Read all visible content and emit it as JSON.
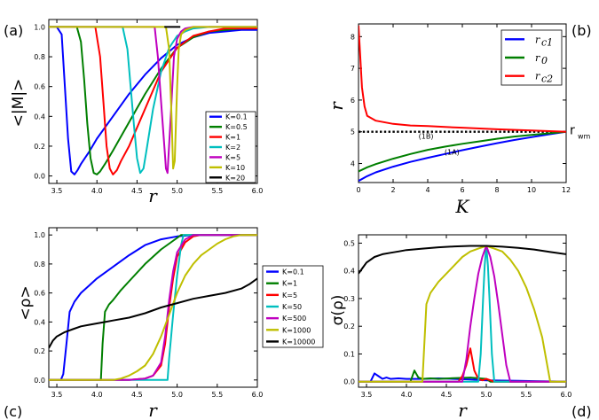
{
  "colors": {
    "blue": "#0000ff",
    "green": "#007f00",
    "red": "#ff0000",
    "cyan": "#00bfbf",
    "magenta": "#bf00bf",
    "olive": "#bfbf00",
    "black": "#000000"
  },
  "chart_data": [
    {
      "panel_label": "(a)",
      "type": "line",
      "xlabel": "r",
      "ylabel": "<|M|>",
      "xlim": [
        3.4,
        6.0
      ],
      "ylim": [
        -0.05,
        1.05
      ],
      "xticks": [
        "3.5",
        "4.0",
        "4.5",
        "5.0",
        "5.5",
        "6.0"
      ],
      "yticks": [
        "0.0",
        "0.2",
        "0.4",
        "0.6",
        "0.8",
        "1.0"
      ],
      "legend_position": "bottom-right",
      "series": [
        {
          "name": "K=0.1",
          "color": "blue",
          "x": [
            3.4,
            3.5,
            3.56,
            3.6,
            3.64,
            3.68,
            3.72,
            3.76,
            3.8,
            3.9,
            4.0,
            4.2,
            4.4,
            4.6,
            4.8,
            5.0,
            5.2,
            5.4,
            5.6,
            5.8,
            6.0
          ],
          "y": [
            1.0,
            1.0,
            0.95,
            0.6,
            0.25,
            0.03,
            0.01,
            0.04,
            0.08,
            0.16,
            0.25,
            0.4,
            0.55,
            0.68,
            0.79,
            0.88,
            0.93,
            0.96,
            0.97,
            0.98,
            0.98
          ]
        },
        {
          "name": "K=0.5",
          "color": "green",
          "x": [
            3.4,
            3.75,
            3.8,
            3.84,
            3.88,
            3.92,
            3.96,
            4.0,
            4.04,
            4.1,
            4.2,
            4.4,
            4.6,
            4.8,
            5.0,
            5.2,
            5.4,
            5.6,
            5.8,
            6.0
          ],
          "y": [
            1.0,
            1.0,
            0.9,
            0.65,
            0.35,
            0.12,
            0.02,
            0.01,
            0.03,
            0.08,
            0.17,
            0.36,
            0.55,
            0.72,
            0.86,
            0.93,
            0.97,
            0.98,
            0.99,
            0.99
          ]
        },
        {
          "name": "K=1",
          "color": "red",
          "x": [
            3.4,
            3.98,
            4.04,
            4.08,
            4.12,
            4.16,
            4.2,
            4.25,
            4.3,
            4.4,
            4.6,
            4.8,
            5.0,
            5.2,
            5.4,
            5.6,
            5.8,
            6.0
          ],
          "y": [
            1.0,
            1.0,
            0.8,
            0.5,
            0.2,
            0.05,
            0.01,
            0.04,
            0.1,
            0.2,
            0.45,
            0.7,
            0.86,
            0.94,
            0.97,
            0.99,
            0.99,
            0.99
          ]
        },
        {
          "name": "K=2",
          "color": "cyan",
          "x": [
            3.4,
            4.32,
            4.38,
            4.42,
            4.46,
            4.5,
            4.54,
            4.58,
            4.62,
            4.7,
            4.8,
            4.9,
            5.0,
            5.1,
            5.2,
            5.4,
            5.6,
            5.8,
            6.0
          ],
          "y": [
            1.0,
            1.0,
            0.85,
            0.6,
            0.35,
            0.12,
            0.02,
            0.05,
            0.18,
            0.45,
            0.7,
            0.86,
            0.94,
            0.97,
            0.99,
            1.0,
            1.0,
            1.0,
            1.0
          ]
        },
        {
          "name": "K=5",
          "color": "magenta",
          "x": [
            3.4,
            4.72,
            4.76,
            4.8,
            4.84,
            4.86,
            4.88,
            4.92,
            4.96,
            5.0,
            5.05,
            5.1,
            5.2,
            5.4,
            5.6,
            5.8,
            6.0
          ],
          "y": [
            1.0,
            1.0,
            0.8,
            0.5,
            0.2,
            0.05,
            0.02,
            0.4,
            0.8,
            0.92,
            0.97,
            0.99,
            1.0,
            1.0,
            1.0,
            1.0,
            1.0
          ]
        },
        {
          "name": "K=10",
          "color": "olive",
          "x": [
            3.4,
            4.86,
            4.9,
            4.93,
            4.95,
            4.97,
            5.0,
            5.02,
            5.05,
            5.1,
            5.2,
            5.4,
            5.6,
            5.8,
            6.0
          ],
          "y": [
            1.0,
            1.0,
            0.85,
            0.4,
            0.05,
            0.1,
            0.6,
            0.85,
            0.95,
            0.98,
            1.0,
            1.0,
            1.0,
            1.0,
            1.0
          ]
        },
        {
          "name": "K=20",
          "color": "black",
          "x": [
            4.84,
            4.92,
            5.0,
            5.04
          ],
          "y": [
            1.0,
            1.0,
            1.0,
            1.0
          ]
        }
      ]
    },
    {
      "panel_label": "(b)",
      "type": "line",
      "xlabel": "K",
      "ylabel": "r",
      "xlim": [
        0,
        12
      ],
      "ylim": [
        3.4,
        8.4
      ],
      "xticks": [
        "0",
        "2",
        "4",
        "6",
        "8",
        "10",
        "12"
      ],
      "yticks": [
        "4",
        "5",
        "6",
        "7",
        "8"
      ],
      "legend_position": "top-right",
      "annotations": [
        "(1B)",
        "(1A)",
        "r",
        "wm"
      ],
      "reference_line": {
        "y": 5.0,
        "style": "dotted",
        "label": "r_wm"
      },
      "series": [
        {
          "name": "r_c1",
          "legend_main": "r",
          "legend_sub": "c1",
          "color": "blue",
          "x": [
            0,
            0.5,
            1,
            2,
            3,
            4,
            5,
            6,
            7,
            8,
            9,
            10,
            11,
            12
          ],
          "y": [
            3.45,
            3.6,
            3.72,
            3.9,
            4.05,
            4.18,
            4.3,
            4.42,
            4.53,
            4.64,
            4.74,
            4.83,
            4.92,
            5.0
          ]
        },
        {
          "name": "r_0",
          "legend_main": "r",
          "legend_sub": "0",
          "color": "green",
          "x": [
            0,
            0.5,
            1,
            2,
            3,
            4,
            5,
            6,
            7,
            8,
            9,
            10,
            11,
            12
          ],
          "y": [
            3.75,
            3.88,
            3.98,
            4.15,
            4.3,
            4.43,
            4.53,
            4.62,
            4.7,
            4.78,
            4.85,
            4.9,
            4.95,
            5.0
          ]
        },
        {
          "name": "r_c2",
          "legend_main": "r",
          "legend_sub": "c2",
          "color": "red",
          "x": [
            0,
            0.1,
            0.2,
            0.35,
            0.5,
            1,
            2,
            3,
            4,
            5,
            6,
            8,
            10,
            12
          ],
          "y": [
            8.35,
            7.4,
            6.4,
            5.8,
            5.5,
            5.35,
            5.25,
            5.2,
            5.18,
            5.15,
            5.13,
            5.08,
            5.04,
            5.0
          ]
        }
      ]
    },
    {
      "panel_label": "(c)",
      "type": "line",
      "xlabel": "r",
      "ylabel": "<ρ>",
      "xlim": [
        3.4,
        6.0
      ],
      "ylim": [
        -0.05,
        1.05
      ],
      "xticks": [
        "3.5",
        "4.0",
        "4.5",
        "5.0",
        "5.5",
        "6.0"
      ],
      "yticks": [
        "0.0",
        "0.2",
        "0.4",
        "0.6",
        "0.8",
        "1.0"
      ],
      "legend_position": "right-center",
      "series": [
        {
          "name": "K=0.1",
          "color": "blue",
          "x": [
            3.4,
            3.55,
            3.58,
            3.62,
            3.66,
            3.72,
            3.8,
            3.9,
            4.0,
            4.2,
            4.4,
            4.6,
            4.8,
            5.0,
            5.2,
            5.4,
            5.6,
            5.8,
            6.0
          ],
          "y": [
            0.0,
            0.0,
            0.04,
            0.25,
            0.47,
            0.54,
            0.6,
            0.65,
            0.7,
            0.78,
            0.86,
            0.93,
            0.97,
            0.99,
            1.0,
            1.0,
            1.0,
            1.0,
            1.0
          ]
        },
        {
          "name": "K=1",
          "color": "green",
          "x": [
            3.4,
            4.05,
            4.07,
            4.1,
            4.15,
            4.2,
            4.3,
            4.4,
            4.6,
            4.8,
            5.0,
            5.05,
            5.2,
            5.4,
            5.6,
            5.8,
            6.0
          ],
          "y": [
            0.0,
            0.0,
            0.25,
            0.47,
            0.52,
            0.55,
            0.62,
            0.68,
            0.8,
            0.9,
            0.98,
            1.0,
            1.0,
            1.0,
            1.0,
            1.0,
            1.0
          ]
        },
        {
          "name": "K=5",
          "color": "red",
          "x": [
            3.4,
            4.4,
            4.6,
            4.7,
            4.8,
            4.85,
            4.9,
            4.95,
            5.0,
            5.1,
            5.2,
            5.3,
            5.4,
            5.6,
            5.8,
            6.0
          ],
          "y": [
            0.0,
            0.0,
            0.01,
            0.03,
            0.1,
            0.25,
            0.5,
            0.7,
            0.85,
            0.95,
            0.99,
            1.0,
            1.0,
            1.0,
            1.0,
            1.0
          ]
        },
        {
          "name": "K=50",
          "color": "cyan",
          "x": [
            3.4,
            4.88,
            4.9,
            4.95,
            5.0,
            5.05,
            5.08,
            5.2,
            5.4,
            5.6,
            5.8,
            6.0
          ],
          "y": [
            0.0,
            0.0,
            0.15,
            0.45,
            0.72,
            0.93,
            1.0,
            1.0,
            1.0,
            1.0,
            1.0,
            1.0
          ]
        },
        {
          "name": "K=500",
          "color": "magenta",
          "x": [
            3.4,
            4.4,
            4.6,
            4.7,
            4.8,
            4.85,
            4.9,
            4.95,
            5.0,
            5.1,
            5.2,
            5.3,
            5.4,
            5.6,
            5.8,
            6.0
          ],
          "y": [
            0.0,
            0.0,
            0.01,
            0.03,
            0.12,
            0.3,
            0.55,
            0.75,
            0.88,
            0.97,
            1.0,
            1.0,
            1.0,
            1.0,
            1.0,
            1.0
          ]
        },
        {
          "name": "K=1000",
          "color": "olive",
          "x": [
            3.4,
            4.2,
            4.3,
            4.4,
            4.5,
            4.6,
            4.7,
            4.8,
            4.9,
            5.0,
            5.1,
            5.2,
            5.3,
            5.4,
            5.5,
            5.6,
            5.7,
            5.8,
            5.9,
            6.0
          ],
          "y": [
            0.0,
            0.0,
            0.01,
            0.03,
            0.06,
            0.1,
            0.18,
            0.3,
            0.45,
            0.6,
            0.72,
            0.8,
            0.86,
            0.9,
            0.94,
            0.97,
            0.99,
            1.0,
            1.0,
            1.0
          ]
        },
        {
          "name": "K=10000",
          "color": "black",
          "x": [
            3.4,
            3.45,
            3.5,
            3.6,
            3.7,
            3.8,
            3.9,
            4.0,
            4.1,
            4.2,
            4.4,
            4.6,
            4.8,
            5.0,
            5.2,
            5.4,
            5.6,
            5.8,
            5.9,
            6.0
          ],
          "y": [
            0.22,
            0.27,
            0.3,
            0.33,
            0.35,
            0.37,
            0.38,
            0.39,
            0.4,
            0.41,
            0.43,
            0.46,
            0.5,
            0.53,
            0.56,
            0.58,
            0.6,
            0.63,
            0.66,
            0.7
          ]
        }
      ]
    },
    {
      "panel_label": "(d)",
      "type": "line",
      "xlabel": "r",
      "ylabel": "σ(ρ)",
      "xlim": [
        3.4,
        6.0
      ],
      "ylim": [
        -0.02,
        0.53
      ],
      "xticks": [
        "3.5",
        "4.0",
        "4.5",
        "5.0",
        "5.5",
        "6.0"
      ],
      "yticks": [
        "0.0",
        "0.1",
        "0.2",
        "0.3",
        "0.4",
        "0.5"
      ],
      "legend_position": "none",
      "series": [
        {
          "name": "K=0.1",
          "color": "blue",
          "x": [
            3.4,
            3.55,
            3.6,
            3.65,
            3.7,
            3.75,
            3.8,
            3.9,
            4.0,
            4.2,
            4.4,
            4.6,
            4.8,
            5.0,
            5.2,
            5.4,
            5.6,
            5.8,
            6.0
          ],
          "y": [
            0.0,
            0.0,
            0.03,
            0.02,
            0.01,
            0.015,
            0.01,
            0.012,
            0.01,
            0.01,
            0.012,
            0.01,
            0.008,
            0.005,
            0.004,
            0.003,
            0.002,
            0.001,
            0.0
          ]
        },
        {
          "name": "K=1",
          "color": "green",
          "x": [
            3.4,
            4.05,
            4.1,
            4.15,
            4.2,
            4.3,
            4.4,
            4.6,
            4.8,
            5.0,
            5.05,
            5.2,
            6.0
          ],
          "y": [
            0.0,
            0.0,
            0.04,
            0.015,
            0.01,
            0.012,
            0.01,
            0.013,
            0.015,
            0.01,
            0.0,
            0.0,
            0.0
          ]
        },
        {
          "name": "K=5",
          "color": "red",
          "x": [
            3.4,
            4.65,
            4.7,
            4.75,
            4.8,
            4.85,
            4.9,
            4.95,
            5.0,
            5.1,
            6.0
          ],
          "y": [
            0.0,
            0.0,
            0.02,
            0.06,
            0.12,
            0.04,
            0.01,
            0.005,
            0.01,
            0.0,
            0.0
          ]
        },
        {
          "name": "K=50",
          "color": "cyan",
          "x": [
            3.4,
            4.9,
            4.93,
            4.96,
            4.98,
            5.0,
            5.02,
            5.04,
            5.07,
            5.1,
            6.0
          ],
          "y": [
            0.0,
            0.0,
            0.1,
            0.3,
            0.42,
            0.49,
            0.42,
            0.3,
            0.1,
            0.0,
            0.0
          ]
        },
        {
          "name": "K=500",
          "color": "magenta",
          "x": [
            3.4,
            4.7,
            4.75,
            4.8,
            4.85,
            4.9,
            4.95,
            5.0,
            5.05,
            5.1,
            5.15,
            5.2,
            5.25,
            5.3,
            6.0
          ],
          "y": [
            0.0,
            0.0,
            0.08,
            0.2,
            0.3,
            0.39,
            0.45,
            0.49,
            0.45,
            0.38,
            0.28,
            0.17,
            0.06,
            0.0,
            0.0
          ]
        },
        {
          "name": "K=1000",
          "color": "olive",
          "x": [
            3.4,
            4.2,
            4.25,
            4.3,
            4.4,
            4.5,
            4.6,
            4.7,
            4.8,
            4.9,
            5.0,
            5.1,
            5.2,
            5.3,
            5.4,
            5.5,
            5.6,
            5.7,
            5.75,
            5.8,
            6.0
          ],
          "y": [
            0.0,
            0.0,
            0.28,
            0.32,
            0.36,
            0.39,
            0.42,
            0.45,
            0.47,
            0.48,
            0.49,
            0.48,
            0.47,
            0.44,
            0.4,
            0.34,
            0.26,
            0.16,
            0.08,
            0.0,
            0.0
          ]
        },
        {
          "name": "K=10000",
          "color": "black",
          "x": [
            3.4,
            3.45,
            3.5,
            3.6,
            3.7,
            3.8,
            3.9,
            4.0,
            4.2,
            4.4,
            4.6,
            4.8,
            5.0,
            5.2,
            5.4,
            5.6,
            5.8,
            6.0
          ],
          "y": [
            0.39,
            0.41,
            0.43,
            0.45,
            0.46,
            0.465,
            0.47,
            0.475,
            0.48,
            0.485,
            0.488,
            0.49,
            0.49,
            0.487,
            0.483,
            0.477,
            0.468,
            0.46
          ]
        }
      ]
    }
  ]
}
